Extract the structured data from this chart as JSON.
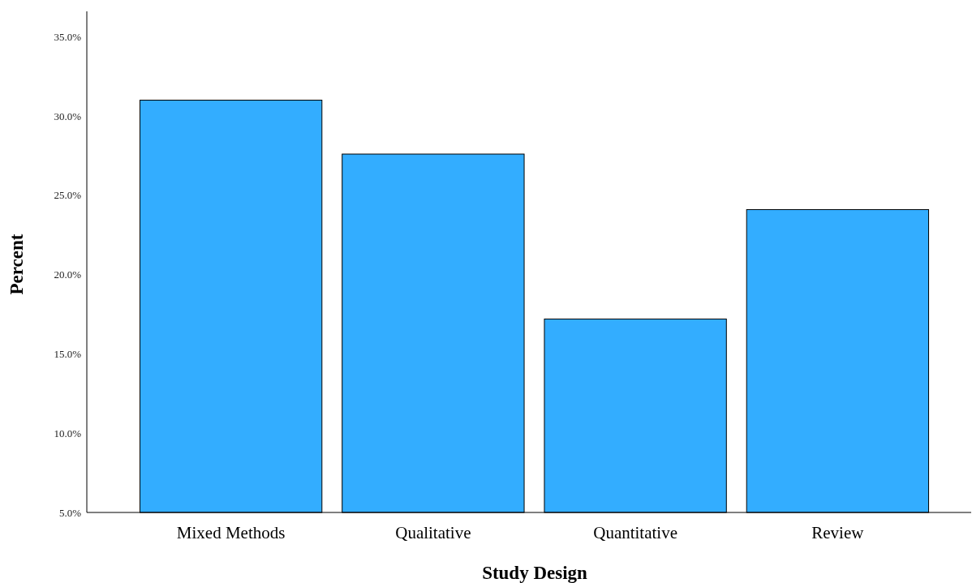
{
  "chart_data": {
    "type": "bar",
    "xlabel": "Study Design",
    "ylabel": "Percent",
    "categories": [
      "Mixed Methods",
      "Qualitative",
      "Quantitative",
      "Review"
    ],
    "values": [
      31.0,
      27.6,
      17.2,
      24.1
    ],
    "color": "#33adff",
    "ylim": [
      5,
      36.6
    ],
    "yticks": [
      {
        "value": 5,
        "label": "5.0%"
      },
      {
        "value": 10,
        "label": "10.0%"
      },
      {
        "value": 15,
        "label": "15.0%"
      },
      {
        "value": 20,
        "label": "20.0%"
      },
      {
        "value": 25,
        "label": "25.0%"
      },
      {
        "value": 30,
        "label": "30.0%"
      },
      {
        "value": 35,
        "label": "35.0%"
      }
    ],
    "grid": false
  }
}
